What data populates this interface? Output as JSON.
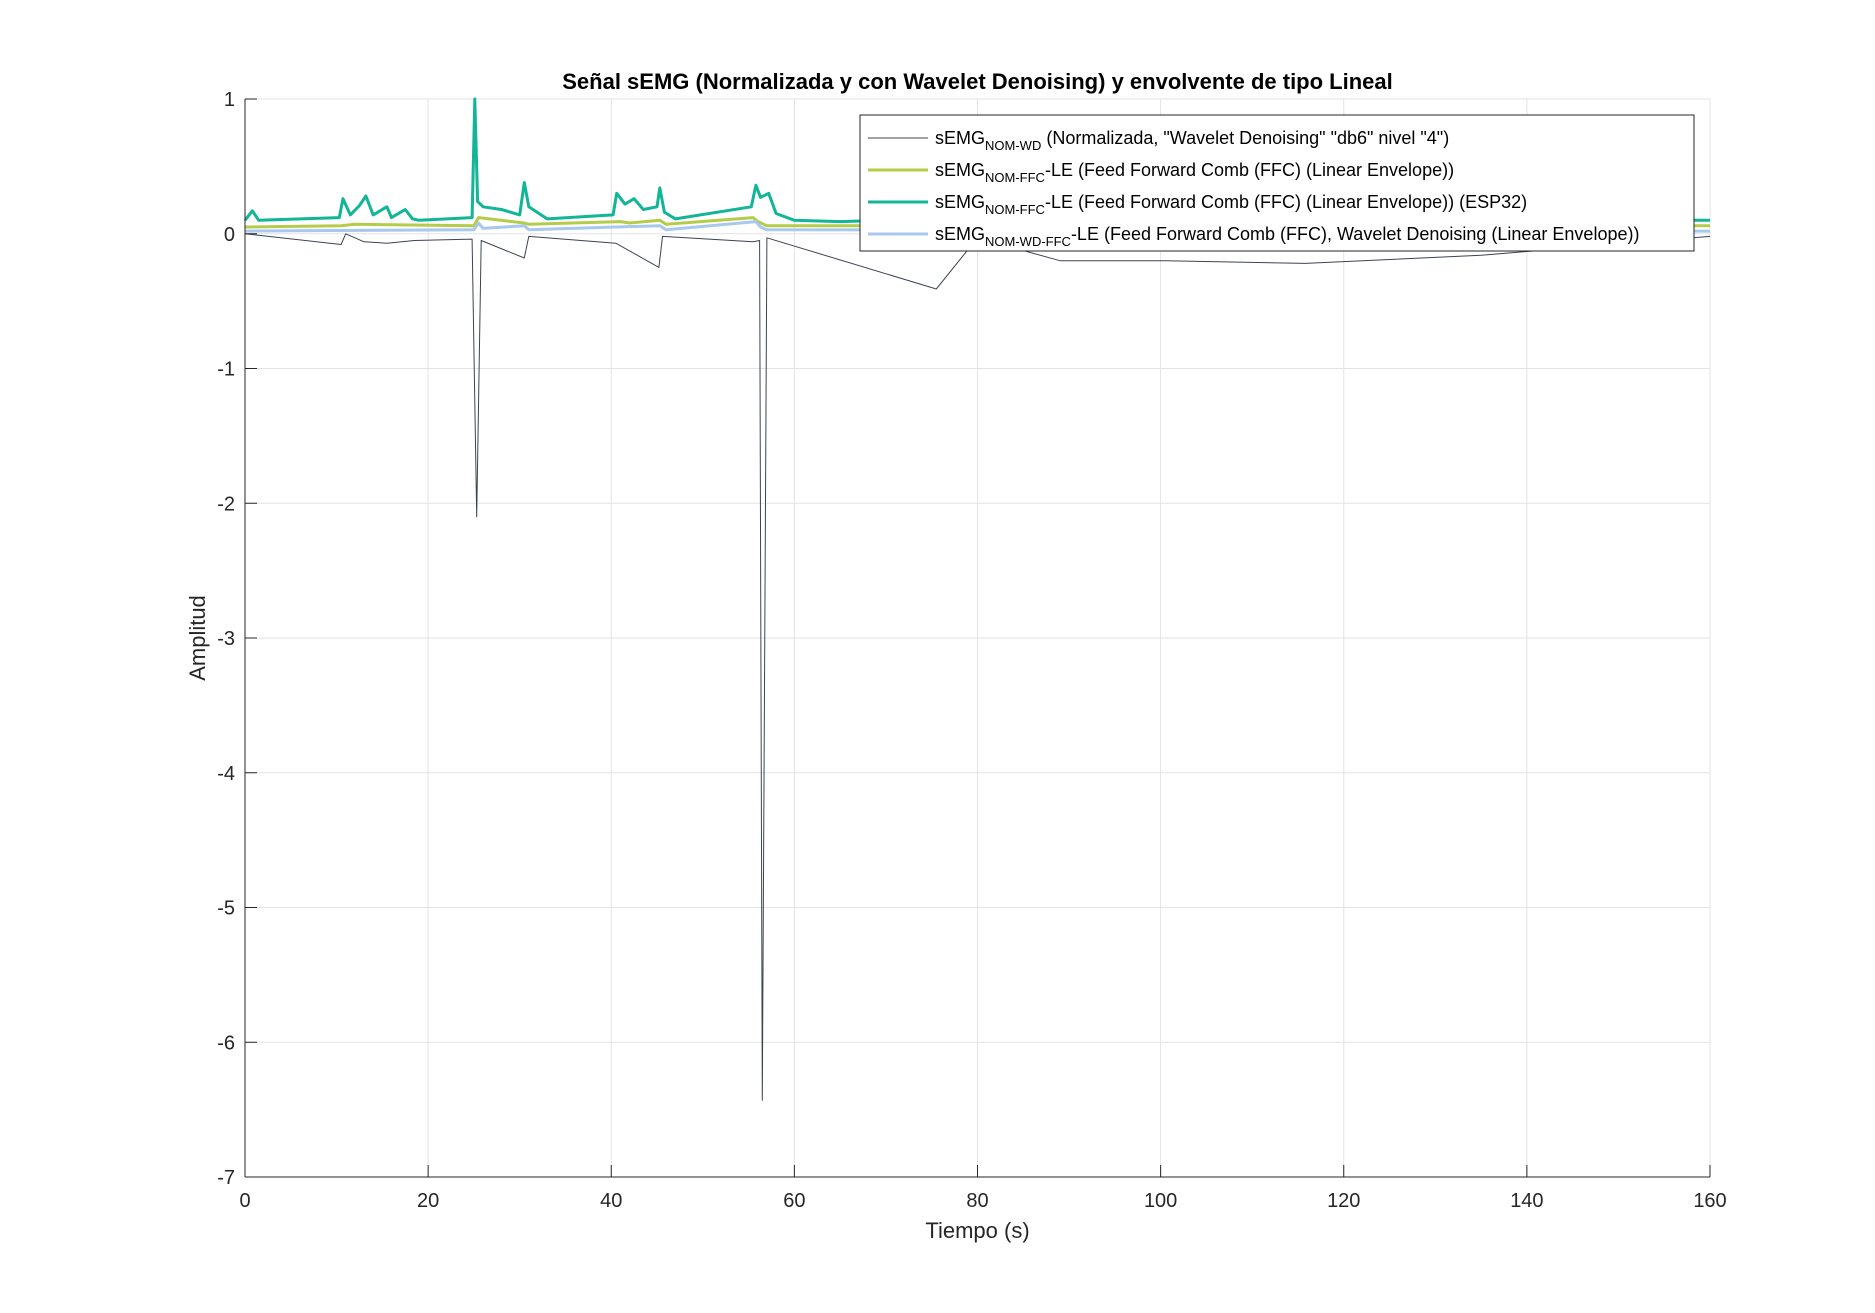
{
  "chart_data": {
    "type": "line",
    "title": "Señal sEMG (Normalizada y con Wavelet Denoising) y envolvente de tipo Lineal",
    "xlabel": "Tiempo (s)",
    "ylabel": "Amplitud",
    "xlim": [
      0,
      160
    ],
    "ylim": [
      -7,
      1
    ],
    "xticks": [
      "0",
      "20",
      "40",
      "60",
      "80",
      "100",
      "120",
      "140",
      "160"
    ],
    "yticks": [
      "1",
      "0",
      "-1",
      "-2",
      "-3",
      "-4",
      "-5",
      "-6",
      "-7"
    ],
    "grid": true,
    "legend_position": "top-right",
    "series": [
      {
        "base": "sEMG",
        "sub": "NOM-WD",
        "rest": " (Normalizada, \"Wavelet Denoising\" \"db6\" nivel \"4\")",
        "color": "#3d4451",
        "width": 1,
        "x": [
          0,
          10.5,
          11,
          13,
          15.5,
          18.5,
          24.8,
          25.3,
          25.8,
          30.5,
          31,
          40.5,
          45.2,
          45.6,
          55.5,
          56.2,
          56.5,
          57,
          75.5,
          80,
          89,
          100.5,
          115.8,
          135,
          160
        ],
        "y": [
          0,
          -0.08,
          0,
          -0.06,
          -0.07,
          -0.05,
          -0.04,
          -2.1,
          -0.05,
          -0.18,
          -0.02,
          -0.07,
          -0.25,
          -0.02,
          -0.06,
          -0.05,
          -6.43,
          -0.03,
          -0.41,
          -0.03,
          -0.2,
          -0.2,
          -0.22,
          -0.16,
          -0.02
        ]
      },
      {
        "base": "sEMG",
        "sub": "NOM-FFC",
        "rest": "-LE (Feed Forward Comb (FFC) (Linear Envelope))",
        "color": "#b5cc4a",
        "width": 3,
        "x": [
          0,
          10.5,
          12,
          25,
          25.5,
          30.5,
          31,
          41,
          42,
          45.3,
          46,
          55.5,
          56,
          57,
          70,
          160
        ],
        "y": [
          0.05,
          0.06,
          0.07,
          0.06,
          0.12,
          0.08,
          0.07,
          0.09,
          0.08,
          0.1,
          0.07,
          0.12,
          0.09,
          0.06,
          0.06,
          0.06
        ]
      },
      {
        "base": "sEMG",
        "sub": "NOM-FFC",
        "rest": "-LE (Feed Forward Comb (FFC) (Linear Envelope)) (ESP32)",
        "color": "#12b596",
        "width": 3,
        "x": [
          0,
          0.8,
          1.5,
          10.3,
          10.7,
          11.5,
          12.5,
          13.2,
          14,
          15.5,
          16,
          17.5,
          18.3,
          19,
          24.8,
          25.1,
          25.4,
          26,
          28,
          30,
          30.5,
          31,
          33,
          40.2,
          40.6,
          41.5,
          42.5,
          43.5,
          45,
          45.3,
          45.8,
          47,
          55.3,
          55.8,
          56.3,
          57.2,
          58,
          60,
          65,
          70,
          80,
          100,
          120,
          140,
          160
        ],
        "y": [
          0.1,
          0.17,
          0.1,
          0.12,
          0.26,
          0.14,
          0.21,
          0.28,
          0.14,
          0.2,
          0.12,
          0.18,
          0.11,
          0.1,
          0.12,
          1.0,
          0.24,
          0.2,
          0.18,
          0.14,
          0.38,
          0.2,
          0.11,
          0.14,
          0.3,
          0.22,
          0.26,
          0.18,
          0.2,
          0.34,
          0.16,
          0.11,
          0.2,
          0.36,
          0.27,
          0.3,
          0.15,
          0.1,
          0.09,
          0.1,
          0.1,
          0.1,
          0.1,
          0.1,
          0.1
        ]
      },
      {
        "base": "sEMG",
        "sub": "NOM-WD-FFC",
        "rest": "-LE (Feed Forward Comb (FFC), Wavelet Denoising (Linear Envelope))",
        "color": "#a8c8ee",
        "width": 3,
        "x": [
          0,
          25,
          25.5,
          26,
          30.5,
          31,
          45.3,
          46,
          55.8,
          56.3,
          57,
          160
        ],
        "y": [
          0.02,
          0.03,
          0.08,
          0.04,
          0.06,
          0.03,
          0.06,
          0.03,
          0.09,
          0.05,
          0.03,
          0.02
        ]
      }
    ]
  }
}
